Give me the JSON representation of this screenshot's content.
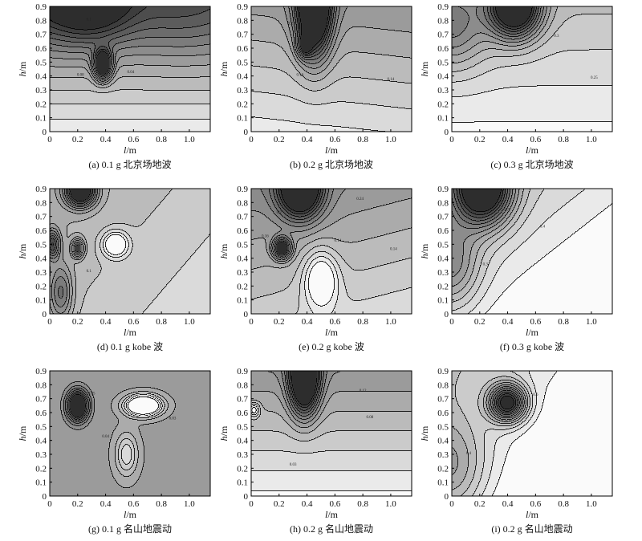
{
  "chart_data": [
    {
      "type": "heatmap",
      "caption": "(a) 0.1 g 北京场地波",
      "xlabel": "l",
      "xunit": "/m",
      "ylabel": "h",
      "yunit": "/m",
      "xlim": [
        0,
        1.15
      ],
      "ylim": [
        0,
        0.9
      ],
      "xticks": [
        "0",
        "0.2",
        "0.4",
        "0.6",
        "0.8",
        "1.0"
      ],
      "yticks": [
        "0",
        "0.1",
        "0.2",
        "0.3",
        "0.4",
        "0.5",
        "0.6",
        "0.7",
        "0.8",
        "0.9"
      ],
      "contour_labels": [
        {
          "x": 0.28,
          "y": 0.8,
          "text": "0.1"
        },
        {
          "x": 0.22,
          "y": 0.4,
          "text": "0.08"
        },
        {
          "x": 0.58,
          "y": 0.42,
          "text": "0.04"
        }
      ],
      "features": [
        {
          "x": 0.38,
          "y": 0.48,
          "amp": 0.9,
          "w": 0.06,
          "h": 0.1
        },
        {
          "x": 0.3,
          "y": 0.9,
          "amp": 0.4,
          "w": 0.3,
          "h": 0.25
        },
        {
          "x": 0.0,
          "y": 0.9,
          "amp": 0.2,
          "w": 0.4,
          "h": 0.3
        },
        {
          "x": 0.95,
          "y": 0.85,
          "amp": 0.15,
          "w": 0.4,
          "h": 0.3
        }
      ],
      "base": 0.08,
      "gx": 0.0,
      "gy": 0.6
    },
    {
      "type": "heatmap",
      "caption": "(b) 0.2 g 北京场地波",
      "xlabel": "l",
      "xunit": "/m",
      "ylabel": "h",
      "yunit": "/m",
      "xlim": [
        0,
        1.15
      ],
      "ylim": [
        0,
        0.9
      ],
      "xticks": [
        "0",
        "0.2",
        "0.4",
        "0.6",
        "0.8",
        "1.0"
      ],
      "yticks": [
        "0",
        "0.1",
        "0.2",
        "0.3",
        "0.4",
        "0.5",
        "0.6",
        "0.7",
        "0.8",
        "0.9"
      ],
      "contour_labels": [
        {
          "x": 0.28,
          "y": 0.77,
          "text": "0.2"
        },
        {
          "x": 0.55,
          "y": 0.8,
          "text": "0.2"
        },
        {
          "x": 0.35,
          "y": 0.4,
          "text": "0.16"
        },
        {
          "x": 1.0,
          "y": 0.37,
          "text": "0.14"
        }
      ],
      "features": [
        {
          "x": 0.45,
          "y": 0.9,
          "amp": 1.0,
          "w": 0.12,
          "h": 0.35
        },
        {
          "x": 0.38,
          "y": 0.62,
          "amp": 0.4,
          "w": 0.05,
          "h": 0.08
        }
      ],
      "base": 0.1,
      "gx": 0.05,
      "gy": 0.35
    },
    {
      "type": "heatmap",
      "caption": "(c) 0.3 g 北京场地波",
      "xlabel": "l",
      "xunit": "/m",
      "ylabel": "h",
      "yunit": "/m",
      "xlim": [
        0,
        1.15
      ],
      "ylim": [
        0,
        0.9
      ],
      "xticks": [
        "0",
        "0.2",
        "0.4",
        "0.6",
        "0.8",
        "1.0"
      ],
      "yticks": [
        "0",
        "0.1",
        "0.2",
        "0.3",
        "0.4",
        "0.5",
        "0.6",
        "0.7",
        "0.8",
        "0.9"
      ],
      "contour_labels": [
        {
          "x": 0.55,
          "y": 0.8,
          "text": "0.4"
        },
        {
          "x": 0.75,
          "y": 0.68,
          "text": "0.3"
        },
        {
          "x": 1.02,
          "y": 0.38,
          "text": "0.25"
        }
      ],
      "features": [
        {
          "x": 0.45,
          "y": 0.9,
          "amp": 1.0,
          "w": 0.18,
          "h": 0.22
        },
        {
          "x": 0.0,
          "y": 0.75,
          "amp": 0.35,
          "w": 0.25,
          "h": 0.3
        }
      ],
      "base": 0.05,
      "gx": 0.0,
      "gy": 0.25
    },
    {
      "type": "heatmap",
      "caption": "(d) 0.1 g kobe 波",
      "xlabel": "l",
      "xunit": "/m",
      "ylabel": "h",
      "yunit": "/m",
      "xlim": [
        0,
        1.15
      ],
      "ylim": [
        0,
        0.9
      ],
      "xticks": [
        "0",
        "0.2",
        "0.4",
        "0.6",
        "0.8",
        "1.0"
      ],
      "yticks": [
        "0",
        "0.1",
        "0.2",
        "0.3",
        "0.4",
        "0.5",
        "0.6",
        "0.7",
        "0.8",
        "0.9"
      ],
      "contour_labels": [
        {
          "x": 0.28,
          "y": 0.3,
          "text": "0.1"
        }
      ],
      "features": [
        {
          "x": 0.22,
          "y": 0.88,
          "amp": 0.9,
          "w": 0.1,
          "h": 0.1
        },
        {
          "x": 0.2,
          "y": 0.47,
          "amp": 0.6,
          "w": 0.04,
          "h": 0.06
        },
        {
          "x": 0.02,
          "y": 0.5,
          "amp": 0.5,
          "w": 0.05,
          "h": 0.1
        },
        {
          "x": 0.08,
          "y": 0.15,
          "amp": 0.35,
          "w": 0.08,
          "h": 0.2
        },
        {
          "x": 0.47,
          "y": 0.5,
          "amp": -0.45,
          "w": 0.09,
          "h": 0.09
        }
      ],
      "base": 0.3,
      "gx": -0.15,
      "gy": 0.1
    },
    {
      "type": "heatmap",
      "caption": "(e) 0.2 g kobe 波",
      "xlabel": "l",
      "xunit": "/m",
      "ylabel": "h",
      "yunit": "/m",
      "xlim": [
        0,
        1.15
      ],
      "ylim": [
        0,
        0.9
      ],
      "xticks": [
        "0",
        "0.2",
        "0.4",
        "0.6",
        "0.8",
        "1.0"
      ],
      "yticks": [
        "0",
        "0.1",
        "0.2",
        "0.3",
        "0.4",
        "0.5",
        "0.6",
        "0.7",
        "0.8",
        "0.9"
      ],
      "contour_labels": [
        {
          "x": 0.2,
          "y": 0.72,
          "text": "0.2"
        },
        {
          "x": 0.78,
          "y": 0.82,
          "text": "0.24"
        },
        {
          "x": 0.62,
          "y": 0.52,
          "text": "0.14"
        },
        {
          "x": 1.02,
          "y": 0.46,
          "text": "0.14"
        },
        {
          "x": 0.1,
          "y": 0.55,
          "text": "0.16"
        }
      ],
      "features": [
        {
          "x": 0.22,
          "y": 0.47,
          "amp": 0.8,
          "w": 0.06,
          "h": 0.07
        },
        {
          "x": 0.35,
          "y": 0.9,
          "amp": 0.9,
          "w": 0.15,
          "h": 0.2
        },
        {
          "x": 0.5,
          "y": 0.25,
          "amp": -0.4,
          "w": 0.12,
          "h": 0.2
        }
      ],
      "base": 0.25,
      "gx": -0.1,
      "gy": 0.3
    },
    {
      "type": "heatmap",
      "caption": "(f) 0.3 g kobe 波",
      "xlabel": "l",
      "xunit": "/m",
      "ylabel": "h",
      "yunit": "/m",
      "xlim": [
        0,
        1.15
      ],
      "ylim": [
        0,
        0.9
      ],
      "xticks": [
        "0",
        "0.2",
        "0.4",
        "0.6",
        "0.8",
        "1.0"
      ],
      "yticks": [
        "0",
        "0.1",
        "0.2",
        "0.3",
        "0.4",
        "0.5",
        "0.6",
        "0.7",
        "0.8",
        "0.9"
      ],
      "contour_labels": [
        {
          "x": 0.4,
          "y": 0.74,
          "text": "0.5"
        },
        {
          "x": 0.65,
          "y": 0.62,
          "text": "0.4"
        },
        {
          "x": 0.24,
          "y": 0.35,
          "text": "0.3"
        }
      ],
      "features": [
        {
          "x": 0.22,
          "y": 0.9,
          "amp": 1.0,
          "w": 0.2,
          "h": 0.25
        },
        {
          "x": 0.0,
          "y": 0.35,
          "amp": 0.35,
          "w": 0.2,
          "h": 0.3
        }
      ],
      "base": 0.1,
      "gx": -0.25,
      "gy": 0.25
    },
    {
      "type": "heatmap",
      "caption": "(g) 0.1 g 名山地震动",
      "xlabel": "l",
      "xunit": "/m",
      "ylabel": "h",
      "yunit": "/m",
      "xlim": [
        0,
        1.15
      ],
      "ylim": [
        0,
        0.9
      ],
      "xticks": [
        "0",
        "0.2",
        "0.4",
        "0.6",
        "0.8",
        "1.0"
      ],
      "yticks": [
        "0",
        "0.1",
        "0.2",
        "0.3",
        "0.4",
        "0.5",
        "0.6",
        "0.7",
        "0.8",
        "0.9"
      ],
      "contour_labels": [
        {
          "x": 0.88,
          "y": 0.55,
          "text": "0.03"
        },
        {
          "x": 0.4,
          "y": 0.42,
          "text": "0.04"
        },
        {
          "x": 0.3,
          "y": 0.73,
          "text": "0.05"
        }
      ],
      "features": [
        {
          "x": 0.2,
          "y": 0.65,
          "amp": 0.9,
          "w": 0.07,
          "h": 0.1
        },
        {
          "x": 0.67,
          "y": 0.65,
          "amp": -0.9,
          "w": 0.12,
          "h": 0.07
        },
        {
          "x": 0.55,
          "y": 0.3,
          "amp": -0.3,
          "w": 0.08,
          "h": 0.15
        }
      ],
      "base": 0.45,
      "gx": 0.0,
      "gy": 0.0
    },
    {
      "type": "heatmap",
      "caption": "(h) 0.2 g 名山地震动",
      "xlabel": "l",
      "xunit": "/m",
      "ylabel": "h",
      "yunit": "/m",
      "xlim": [
        0,
        1.15
      ],
      "ylim": [
        0,
        0.9
      ],
      "xticks": [
        "0",
        "0.2",
        "0.4",
        "0.6",
        "0.8",
        "1.0"
      ],
      "yticks": [
        "0",
        "0.1",
        "0.2",
        "0.3",
        "0.4",
        "0.5",
        "0.6",
        "0.7",
        "0.8",
        "0.9"
      ],
      "contour_labels": [
        {
          "x": 0.8,
          "y": 0.75,
          "text": "0.12"
        },
        {
          "x": 0.85,
          "y": 0.56,
          "text": "0.08"
        },
        {
          "x": 0.3,
          "y": 0.22,
          "text": "0.03"
        }
      ],
      "features": [
        {
          "x": 0.38,
          "y": 0.85,
          "amp": 1.0,
          "w": 0.1,
          "h": 0.25
        },
        {
          "x": 0.02,
          "y": 0.62,
          "amp": -0.35,
          "w": 0.04,
          "h": 0.05
        }
      ],
      "base": 0.05,
      "gx": 0.0,
      "gy": 0.45
    },
    {
      "type": "heatmap",
      "caption": "(i) 0.2 g 名山地震动",
      "xlabel": "l",
      "xunit": "/m",
      "ylabel": "h",
      "yunit": "/m",
      "xlim": [
        0,
        1.15
      ],
      "ylim": [
        0,
        0.9
      ],
      "xticks": [
        "0",
        "0.2",
        "0.4",
        "0.6",
        "0.8",
        "1.0"
      ],
      "yticks": [
        "0",
        "0.1",
        "0.2",
        "0.3",
        "0.4",
        "0.5",
        "0.6",
        "0.7",
        "0.8",
        "0.9"
      ],
      "contour_labels": [
        {
          "x": 0.28,
          "y": 0.62,
          "text": "0.5"
        },
        {
          "x": 0.6,
          "y": 0.72,
          "text": "0.6"
        },
        {
          "x": 0.12,
          "y": 0.3,
          "text": "0.4"
        }
      ],
      "features": [
        {
          "x": 0.4,
          "y": 0.67,
          "amp": 0.9,
          "w": 0.13,
          "h": 0.13
        },
        {
          "x": 0.0,
          "y": 0.2,
          "amp": 0.3,
          "w": 0.25,
          "h": 0.35
        }
      ],
      "base": 0.1,
      "gx": -0.35,
      "gy": 0.2
    }
  ]
}
